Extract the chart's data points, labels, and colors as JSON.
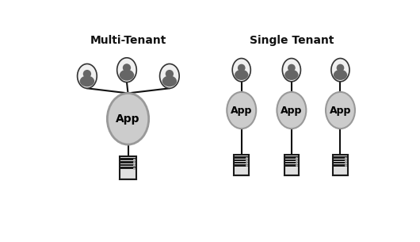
{
  "bg_color": "#ffffff",
  "left_title": "Multi-Tenant",
  "right_title": "Single Tenant",
  "title_fontsize": 10,
  "title_fontweight": "bold",
  "app_ellipse_color": "#cccccc",
  "app_ellipse_edge": "#999999",
  "app_ellipse_lw": 2.0,
  "user_circle_color": "#f0f0f0",
  "user_circle_edge": "#333333",
  "user_circle_lw": 1.2,
  "person_color": "#666666",
  "line_color": "#111111",
  "line_lw": 1.5,
  "app_label": "App",
  "app_fontsize": 10,
  "app_fontweight": "bold",
  "server_fill": "#e0e0e0",
  "server_dark": "#1a1a1a",
  "server_mid": "#555555"
}
